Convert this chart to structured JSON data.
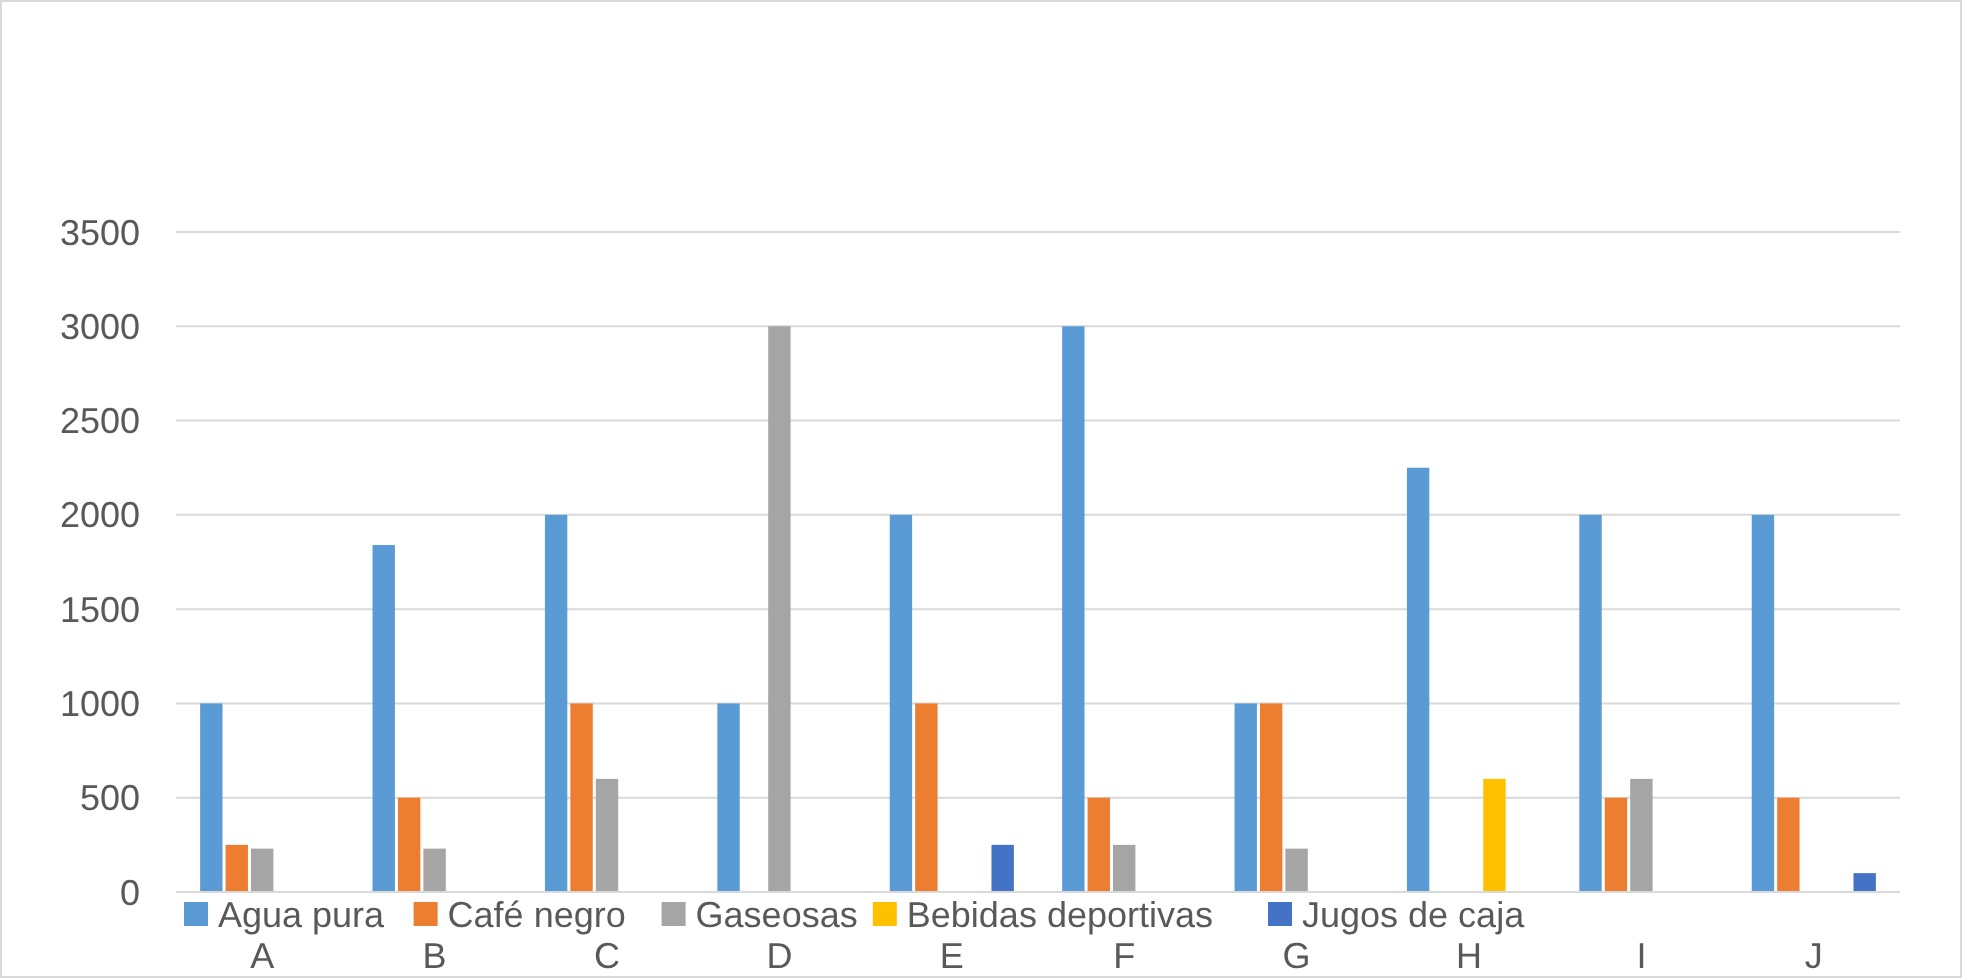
{
  "chart_data": {
    "type": "bar",
    "categories": [
      "A",
      "B",
      "C",
      "D",
      "E",
      "F",
      "G",
      "H",
      "I",
      "J"
    ],
    "series": [
      {
        "name": "Agua pura",
        "color": "#5b9bd5",
        "values": [
          1000,
          1840,
          2000,
          1000,
          2000,
          3000,
          1000,
          2250,
          2000,
          2000
        ]
      },
      {
        "name": "Café negro",
        "color": "#ed7d31",
        "values": [
          250,
          500,
          1000,
          null,
          1000,
          500,
          1000,
          null,
          500,
          500
        ]
      },
      {
        "name": "Gaseosas",
        "color": "#a5a5a5",
        "values": [
          230,
          230,
          600,
          3000,
          null,
          250,
          230,
          null,
          600,
          null
        ]
      },
      {
        "name": "Bebidas deportivas",
        "color": "#ffc000",
        "values": [
          null,
          null,
          null,
          null,
          null,
          null,
          null,
          600,
          null,
          null
        ]
      },
      {
        "name": "Jugos de caja",
        "color": "#4472c4",
        "values": [
          null,
          null,
          null,
          null,
          250,
          null,
          null,
          null,
          null,
          100
        ]
      }
    ],
    "ylim": [
      0,
      3500
    ],
    "yticks": [
      0,
      500,
      1000,
      1500,
      2000,
      2500,
      3000,
      3500
    ],
    "grid": "y",
    "legend": "bottom"
  }
}
